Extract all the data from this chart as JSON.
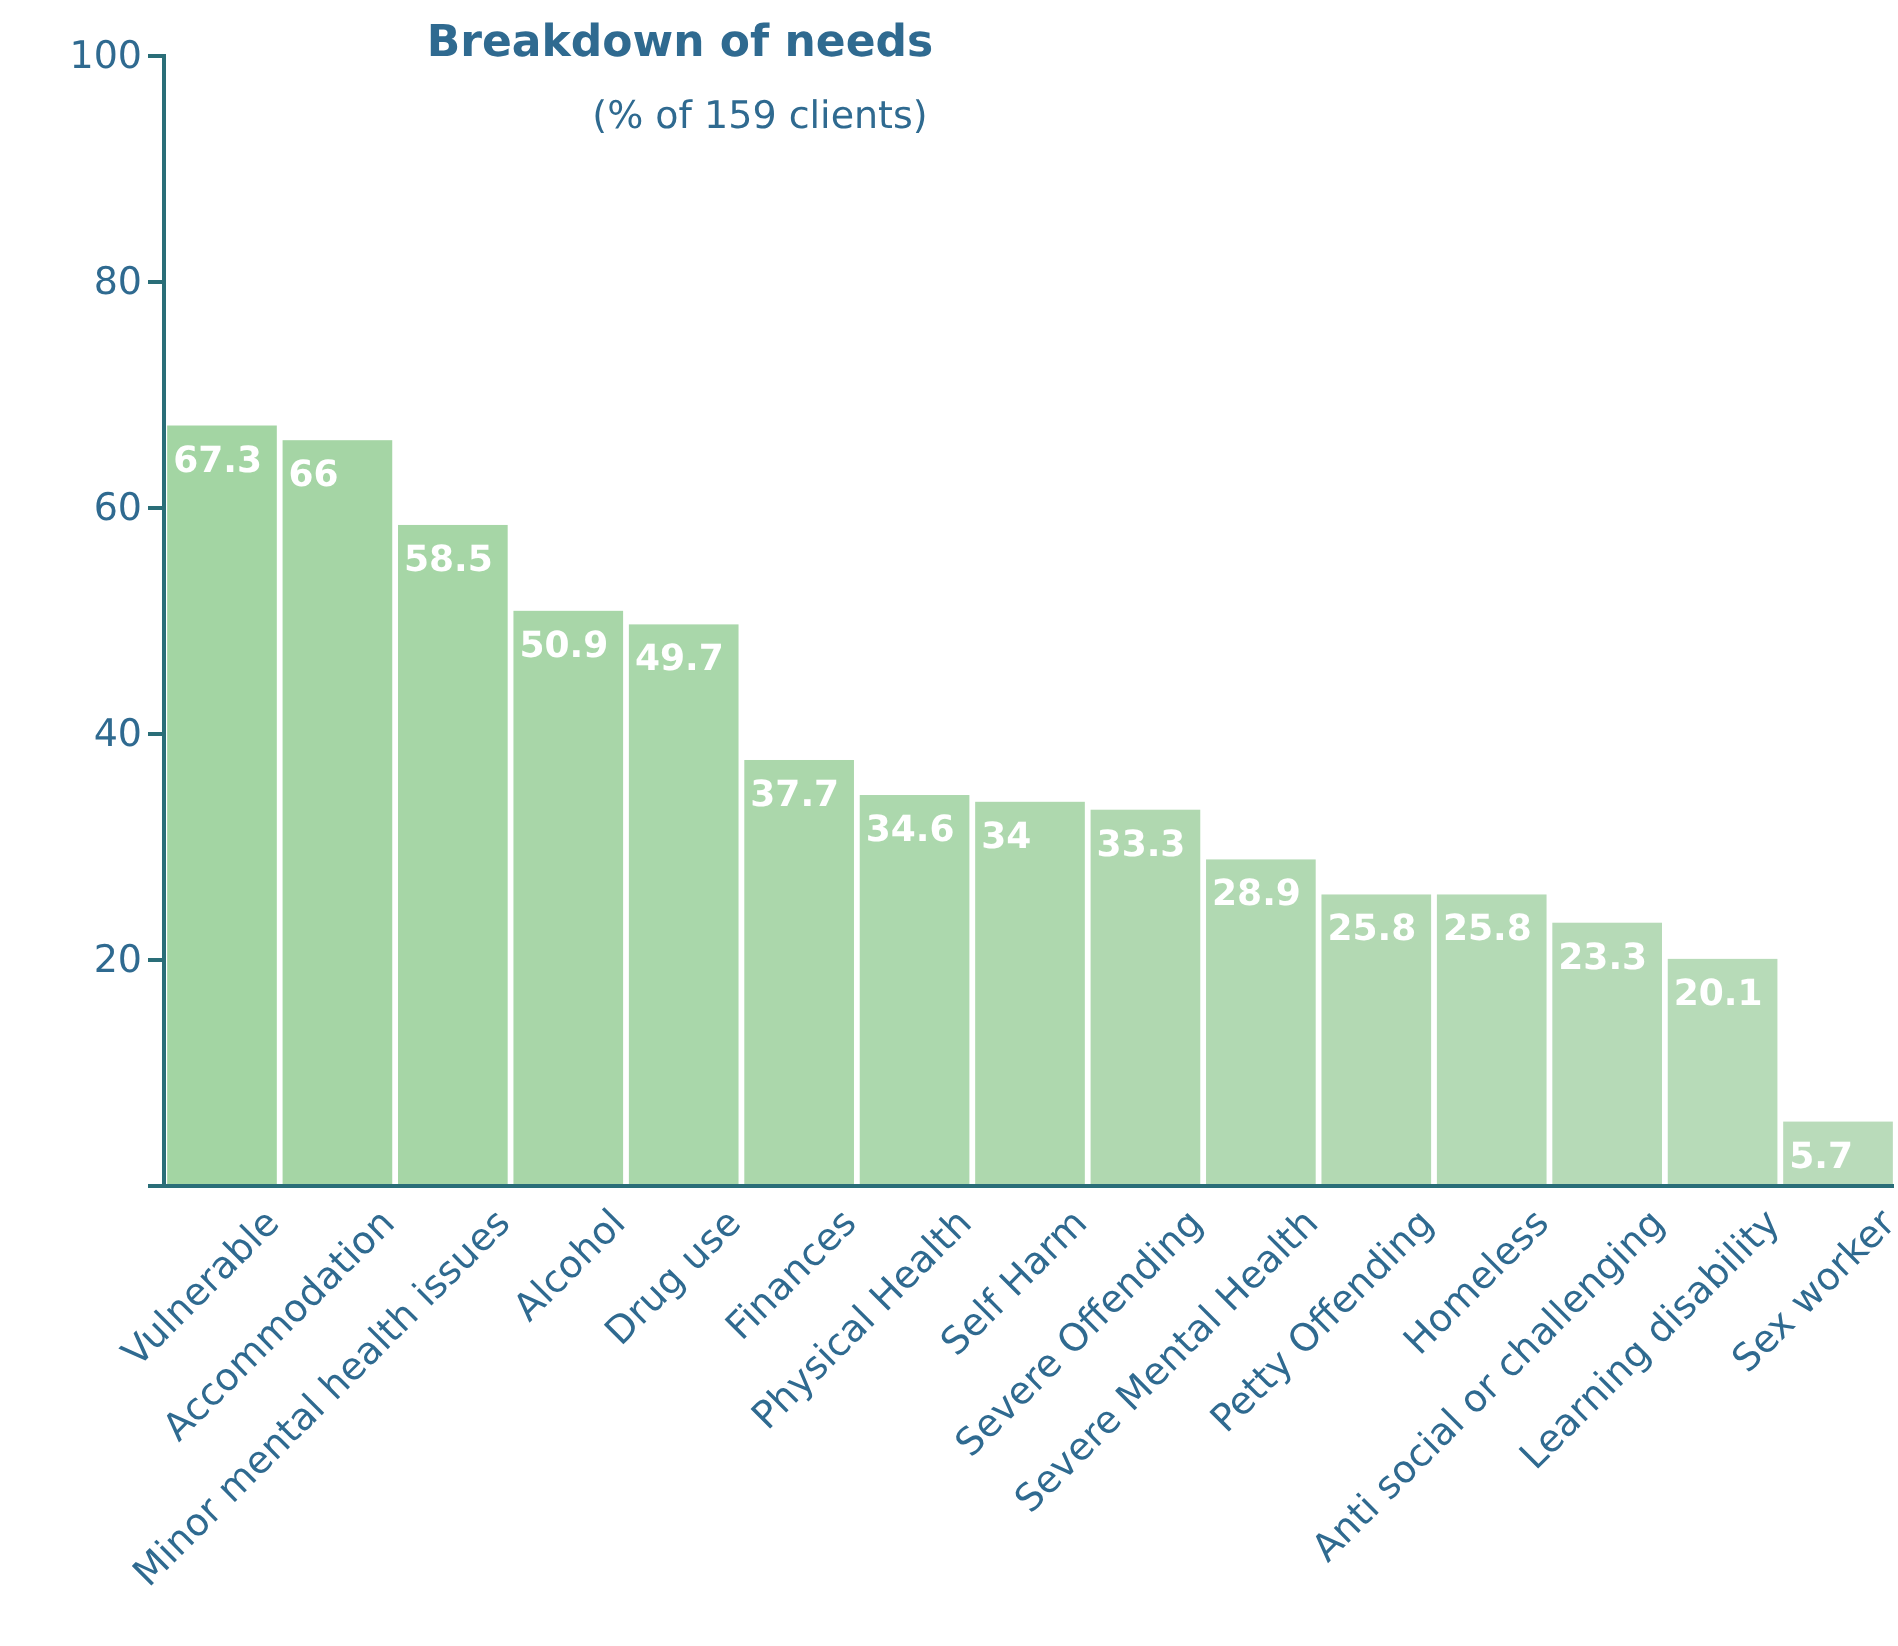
{
  "chart_data": {
    "type": "bar",
    "title": "Breakdown of needs",
    "subtitle": "(% of 159 clients)",
    "categories": [
      "Vulnerable",
      "Accommodation",
      "Minor mental health issues",
      "Alcohol",
      "Drug use",
      "Finances",
      "Physical Health",
      "Self Harm",
      "Severe Offending",
      "Severe Mental Health",
      "Petty Offending",
      "Homeless",
      "Anti social or challenging",
      "Learning disability",
      "Sex worker"
    ],
    "values": [
      67.3,
      66,
      58.5,
      50.9,
      49.7,
      37.7,
      34.6,
      34,
      33.3,
      28.9,
      25.8,
      25.8,
      23.3,
      20.1,
      5.7
    ],
    "colors": [
      "#a3d5a3",
      "#a5d5a5",
      "#a6d6a6",
      "#a8d6a8",
      "#a9d7aa",
      "#abd7ab",
      "#acd8ad",
      "#aed8ae",
      "#b0d8b0",
      "#b1d9b2",
      "#b3d9b3",
      "#b4dab5",
      "#b6dab7",
      "#b7dbb8",
      "#b9dbba"
    ],
    "ylim": [
      0,
      100
    ],
    "yticks": [
      20,
      40,
      60,
      80,
      100
    ],
    "data_labels": true
  }
}
